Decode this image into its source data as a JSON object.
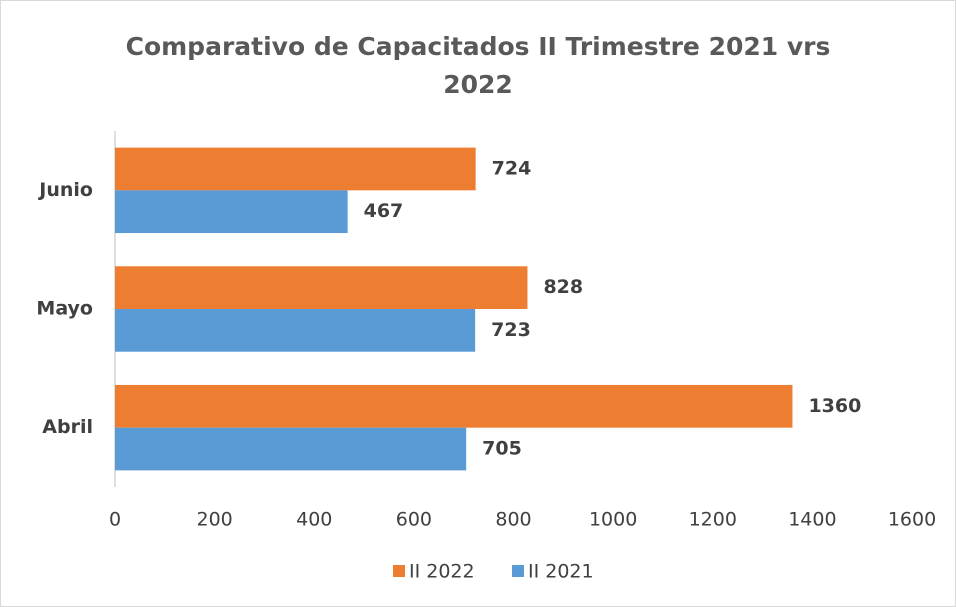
{
  "chart_data": {
    "type": "bar",
    "orientation": "horizontal",
    "title": "Comparativo de Capacitados II Trimestre 2021 vrs 2022",
    "categories": [
      "Abril",
      "Mayo",
      "Junio"
    ],
    "series": [
      {
        "name": "II 2022",
        "color": "#ed7d31",
        "values": [
          1360,
          828,
          724
        ]
      },
      {
        "name": "II 2021",
        "color": "#5b9bd5",
        "values": [
          705,
          723,
          467
        ]
      }
    ],
    "xlim": [
      0,
      1600
    ],
    "xticks": [
      0,
      200,
      400,
      600,
      800,
      1000,
      1200,
      1400,
      1600
    ],
    "grid": false,
    "legend": "bottom"
  }
}
